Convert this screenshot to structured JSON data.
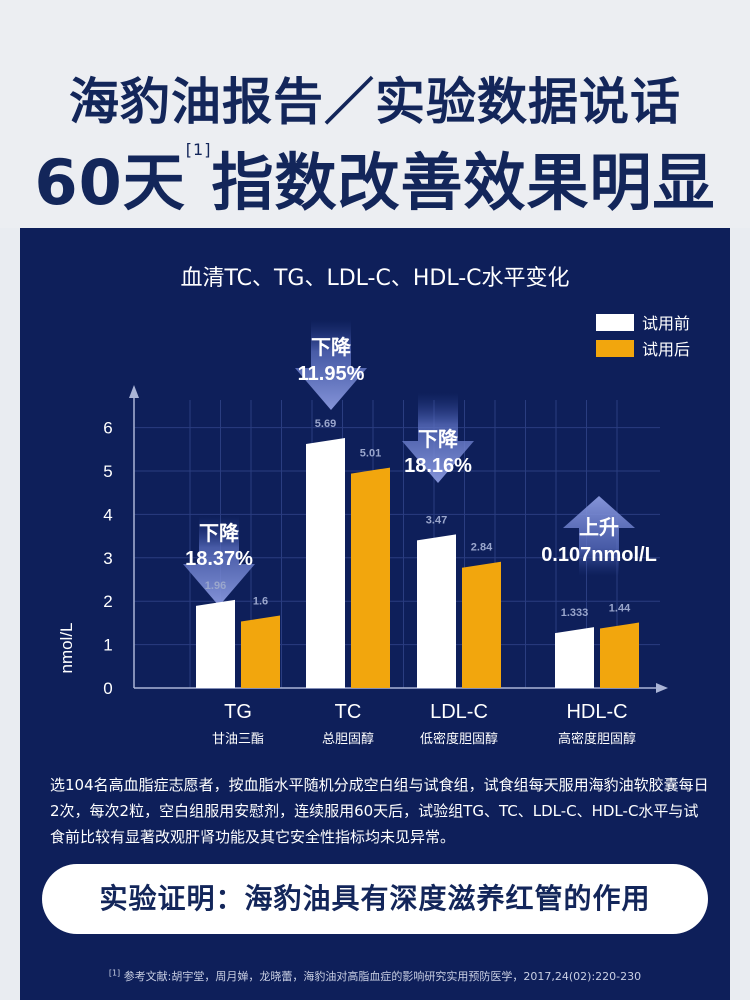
{
  "header": {
    "line1": "海豹油报告／实验数据说话",
    "line2_prefix": "60天",
    "line2_sup": "[1]",
    "line2_suffix": "指数改善效果明显"
  },
  "legend": {
    "before": "试用前",
    "after": "试用后"
  },
  "colors": {
    "before": "#ffffff",
    "after": "#f2a60d",
    "background": "#0e1f5a",
    "title": "#13265a"
  },
  "chart_data": {
    "type": "bar",
    "title": "血清TC、TG、LDL-C、HDL-C水平变化",
    "ylabel": "nmol/L",
    "ylim": [
      0,
      6
    ],
    "yticks": [
      "0",
      "1",
      "2",
      "3",
      "4",
      "5",
      "6"
    ],
    "grid": true,
    "legend_position": "top-right",
    "categories": [
      "TG",
      "TC",
      "LDL-C",
      "HDL-C"
    ],
    "category_sublabels": [
      "甘油三酯",
      "总胆固醇",
      "低密度胆固醇",
      "高密度胆固醇"
    ],
    "series": [
      {
        "name": "试用前",
        "values": [
          1.96,
          5.69,
          3.47,
          1.333
        ],
        "labels": [
          "1.96",
          "5.69",
          "3.47",
          "1.333"
        ]
      },
      {
        "name": "试用后",
        "values": [
          1.6,
          5.01,
          2.84,
          1.44
        ],
        "labels": [
          "1.6",
          "5.01",
          "2.84",
          "1.44"
        ]
      }
    ],
    "annotations": [
      {
        "direction": "down",
        "line1": "下降",
        "line2": "18.37%"
      },
      {
        "direction": "down",
        "line1": "下降",
        "line2": "11.95%"
      },
      {
        "direction": "down",
        "line1": "下降",
        "line2": "18.16%"
      },
      {
        "direction": "up",
        "line1": "上升",
        "line2": "0.107nmol/L"
      }
    ]
  },
  "description": "选104名高血脂症志愿者，按血脂水平随机分成空白组与试食组，试食组每天服用海豹油软胶囊每日2次，每次2粒，空白组服用安慰剂，连续服用60天后，试验组TG、TC、LDL-C、HDL-C水平与试食前比较有显著改观肝肾功能及其它安全性指标均未见异常。",
  "conclusion": "实验证明：海豹油具有深度滋养红管的作用",
  "reference": {
    "sup": "[1]",
    "text": "参考文献:胡宇堂，周月婵，龙晓蕾，海豹油对高脂血症的影响研究实用预防医学，2017,24(02):220-230"
  }
}
